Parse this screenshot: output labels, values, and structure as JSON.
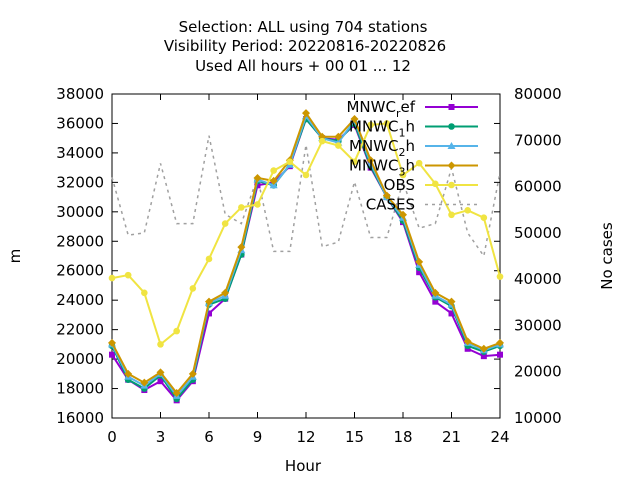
{
  "chart_data": {
    "type": "line",
    "title": [
      "Selection: ALL using   704 stations",
      "Visibility    Period: 20220816-20220826",
      "Used  All hours  + 00 01 ... 12"
    ],
    "xlabel": "Hour",
    "ylabel": "m",
    "y2label": "No cases",
    "xlim": [
      0,
      24
    ],
    "ylim": [
      16000,
      38000
    ],
    "y2lim": [
      10000,
      80000
    ],
    "xticks": [
      "0",
      "3",
      "6",
      "9",
      "12",
      "15",
      "18",
      "21",
      "24"
    ],
    "yticks": [
      "16000",
      "18000",
      "20000",
      "22000",
      "24000",
      "26000",
      "28000",
      "30000",
      "32000",
      "34000",
      "36000",
      "38000"
    ],
    "y2ticks": [
      "10000",
      "20000",
      "30000",
      "40000",
      "50000",
      "60000",
      "70000",
      "80000"
    ],
    "legend_position": "top-right",
    "x": [
      0,
      1,
      2,
      3,
      4,
      5,
      6,
      7,
      8,
      9,
      10,
      11,
      12,
      13,
      14,
      15,
      16,
      17,
      18,
      19,
      20,
      21,
      22,
      23,
      24
    ],
    "series": [
      {
        "name": "MNWC_ref",
        "legend_main": "MNWC",
        "legend_sub": "r",
        "legend_tail": "ef",
        "color": "#9400d3",
        "marker": "square",
        "axis": "y",
        "values": [
          20300,
          18600,
          17900,
          18500,
          17200,
          18500,
          23100,
          24100,
          27100,
          31800,
          32000,
          33100,
          36300,
          35000,
          34900,
          35900,
          33000,
          31000,
          29300,
          25900,
          23900,
          23100,
          20700,
          20200,
          20300
        ]
      },
      {
        "name": "MNWC_1h",
        "legend_main": "MNWC",
        "legend_sub": "1",
        "legend_tail": "h",
        "color": "#009e73",
        "marker": "circle",
        "axis": "y",
        "values": [
          20900,
          18600,
          18000,
          18900,
          17300,
          18600,
          23700,
          24100,
          27100,
          32100,
          31800,
          33200,
          36300,
          35000,
          34800,
          36000,
          33100,
          31000,
          29400,
          26200,
          24200,
          23600,
          20900,
          20500,
          20900
        ]
      },
      {
        "name": "MNWC_2h",
        "legend_main": "MNWC",
        "legend_sub": "2",
        "legend_tail": "h",
        "color": "#56b4e9",
        "marker": "triangle",
        "axis": "y",
        "values": [
          21000,
          18800,
          18200,
          19000,
          17500,
          18800,
          23800,
          24300,
          27400,
          32200,
          31800,
          33200,
          36500,
          35000,
          34700,
          36200,
          33300,
          31000,
          29600,
          26400,
          24300,
          23700,
          21100,
          20600,
          21000
        ]
      },
      {
        "name": "MNWC_3h",
        "legend_main": "MNWC",
        "legend_sub": "3",
        "legend_tail": "h",
        "color": "#cc9600",
        "marker": "diamond",
        "axis": "y",
        "values": [
          21100,
          19000,
          18400,
          19100,
          17700,
          19000,
          23900,
          24500,
          27600,
          32300,
          32100,
          33500,
          36700,
          35100,
          35100,
          36300,
          33500,
          31100,
          29800,
          26600,
          24500,
          23900,
          21200,
          20700,
          21100
        ]
      },
      {
        "name": "OBS",
        "legend_main": "OBS",
        "legend_sub": "",
        "legend_tail": "",
        "color": "#f0e442",
        "marker": "circle",
        "axis": "y",
        "values": [
          25500,
          25700,
          24500,
          21000,
          21900,
          24800,
          26800,
          29200,
          30300,
          30500,
          32800,
          33400,
          32500,
          34800,
          34500,
          33400,
          35900,
          36000,
          32500,
          33300,
          31900,
          29800,
          30100,
          29600,
          25600
        ]
      },
      {
        "name": "CASES",
        "legend_main": "CASES",
        "legend_sub": "",
        "legend_tail": "",
        "color": "#a0a0a0",
        "marker": "none",
        "dashed": true,
        "axis": "y2",
        "values": [
          62000,
          49500,
          50000,
          65000,
          52000,
          52000,
          71000,
          54000,
          52000,
          62000,
          46000,
          46000,
          69000,
          47000,
          48000,
          61000,
          49000,
          49000,
          61000,
          51000,
          52000,
          64000,
          50000,
          45000,
          63000
        ]
      }
    ]
  }
}
